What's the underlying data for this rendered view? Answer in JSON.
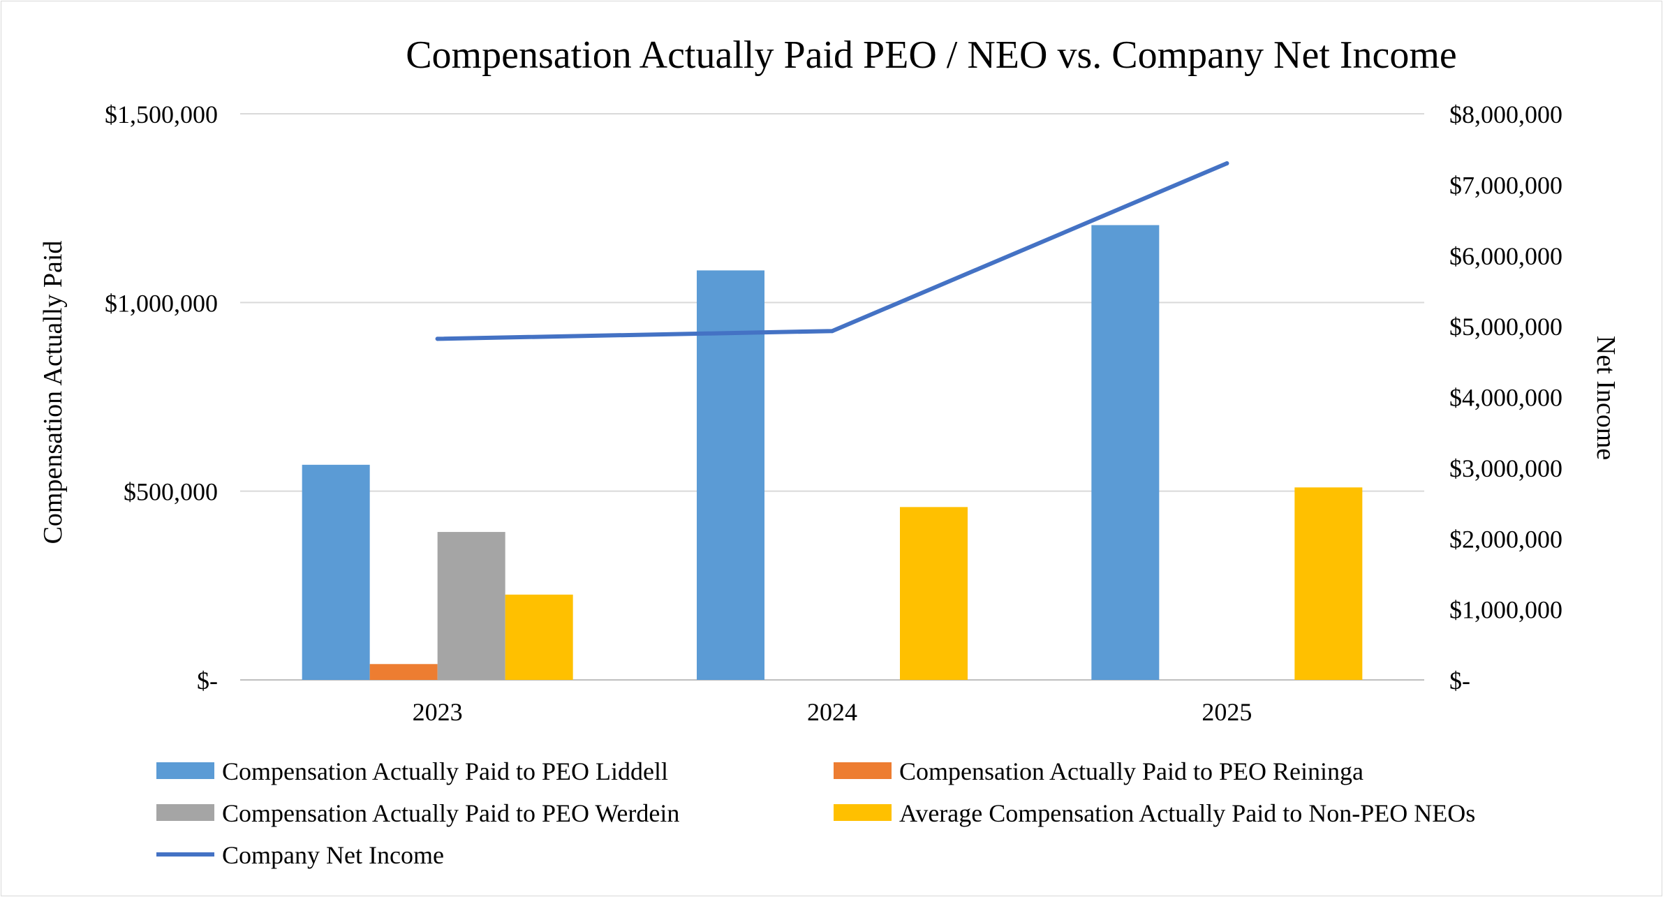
{
  "chart_data": {
    "type": "bar",
    "title": "Compensation Actually Paid PEO / NEO vs. Company Net Income",
    "categories": [
      "2023",
      "2024",
      "2025"
    ],
    "ylabel": "Compensation Actually Paid",
    "y2label": "Net Income",
    "ylim": [
      0,
      1500000
    ],
    "y2lim": [
      0,
      8000000
    ],
    "yticks": [
      0,
      500000,
      1000000,
      1500000
    ],
    "yticklabels": [
      "$-",
      "$500,000",
      "$1,000,000",
      "$1,500,000"
    ],
    "y2ticks": [
      0,
      1000000,
      2000000,
      3000000,
      4000000,
      5000000,
      6000000,
      7000000,
      8000000
    ],
    "y2ticklabels": [
      "$-",
      "$1,000,000",
      "$2,000,000",
      "$3,000,000",
      "$4,000,000",
      "$5,000,000",
      "$6,000,000",
      "$7,000,000",
      "$8,000,000"
    ],
    "grid": true,
    "legend_position": "bottom",
    "series": [
      {
        "name": "Compensation Actually Paid to PEO Liddell",
        "type": "bar",
        "axis": "left",
        "color": "#5B9BD5",
        "values": [
          570000,
          1085000,
          1205000
        ]
      },
      {
        "name": "Compensation Actually Paid to PEO Reininga",
        "type": "bar",
        "axis": "left",
        "color": "#ED7D31",
        "values": [
          42000,
          null,
          null
        ]
      },
      {
        "name": "Compensation Actually Paid to PEO Werdein",
        "type": "bar",
        "axis": "left",
        "color": "#A5A5A5",
        "values": [
          392000,
          null,
          null
        ]
      },
      {
        "name": "Average Compensation Actually Paid to Non-PEO NEOs",
        "type": "bar",
        "axis": "left",
        "color": "#FFC000",
        "values": [
          226000,
          458000,
          510000
        ]
      },
      {
        "name": "Company Net Income",
        "type": "line",
        "axis": "right",
        "color": "#4472C4",
        "values": [
          4820000,
          4930000,
          7300000
        ]
      }
    ]
  }
}
